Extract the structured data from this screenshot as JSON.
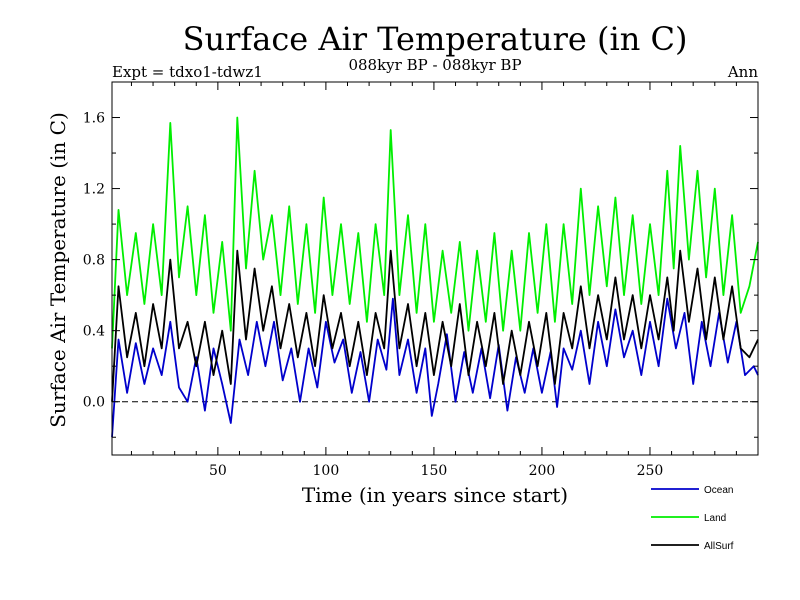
{
  "chart_data": {
    "type": "line",
    "title": "Surface Air Temperature (in C)",
    "subtitle": "088kyr BP - 088kyr BP",
    "expt_label": "Expt = tdxo1-tdwz1",
    "period_label": "Ann",
    "xlabel": "Time (in years since start)",
    "ylabel": "Surface Air Temperature (in C)",
    "xlim": [
      1,
      300
    ],
    "ylim": [
      -0.3,
      1.8
    ],
    "xticks": [
      50,
      100,
      150,
      200,
      250
    ],
    "yticks": [
      0.0,
      0.4,
      0.8,
      1.2,
      1.6
    ],
    "ytick_labels": [
      "0.0",
      "0.4",
      "0.8",
      "1.2",
      "1.6"
    ],
    "zero_line": "dashed",
    "legend_position": "bottom-right outside",
    "series": [
      {
        "name": "Ocean",
        "color": "#0000cc",
        "values": [
          {
            "x": 1,
            "y": -0.2
          },
          {
            "x": 4,
            "y": 0.35
          },
          {
            "x": 8,
            "y": 0.05
          },
          {
            "x": 12,
            "y": 0.33
          },
          {
            "x": 16,
            "y": 0.1
          },
          {
            "x": 20,
            "y": 0.3
          },
          {
            "x": 24,
            "y": 0.15
          },
          {
            "x": 28,
            "y": 0.45
          },
          {
            "x": 32,
            "y": 0.08
          },
          {
            "x": 36,
            "y": 0.0
          },
          {
            "x": 40,
            "y": 0.25
          },
          {
            "x": 44,
            "y": -0.05
          },
          {
            "x": 48,
            "y": 0.3
          },
          {
            "x": 52,
            "y": 0.1
          },
          {
            "x": 56,
            "y": -0.12
          },
          {
            "x": 60,
            "y": 0.35
          },
          {
            "x": 64,
            "y": 0.15
          },
          {
            "x": 68,
            "y": 0.45
          },
          {
            "x": 72,
            "y": 0.2
          },
          {
            "x": 76,
            "y": 0.45
          },
          {
            "x": 80,
            "y": 0.12
          },
          {
            "x": 84,
            "y": 0.3
          },
          {
            "x": 88,
            "y": 0.0
          },
          {
            "x": 92,
            "y": 0.3
          },
          {
            "x": 96,
            "y": 0.08
          },
          {
            "x": 100,
            "y": 0.45
          },
          {
            "x": 104,
            "y": 0.22
          },
          {
            "x": 108,
            "y": 0.35
          },
          {
            "x": 112,
            "y": 0.05
          },
          {
            "x": 116,
            "y": 0.28
          },
          {
            "x": 120,
            "y": 0.0
          },
          {
            "x": 124,
            "y": 0.35
          },
          {
            "x": 128,
            "y": 0.18
          },
          {
            "x": 131,
            "y": 0.58
          },
          {
            "x": 134,
            "y": 0.15
          },
          {
            "x": 138,
            "y": 0.35
          },
          {
            "x": 142,
            "y": 0.05
          },
          {
            "x": 146,
            "y": 0.3
          },
          {
            "x": 149,
            "y": -0.08
          },
          {
            "x": 152,
            "y": 0.1
          },
          {
            "x": 156,
            "y": 0.38
          },
          {
            "x": 160,
            "y": 0.0
          },
          {
            "x": 164,
            "y": 0.28
          },
          {
            "x": 168,
            "y": 0.05
          },
          {
            "x": 172,
            "y": 0.3
          },
          {
            "x": 176,
            "y": 0.02
          },
          {
            "x": 180,
            "y": 0.32
          },
          {
            "x": 184,
            "y": -0.05
          },
          {
            "x": 188,
            "y": 0.25
          },
          {
            "x": 192,
            "y": 0.05
          },
          {
            "x": 196,
            "y": 0.3
          },
          {
            "x": 200,
            "y": 0.05
          },
          {
            "x": 204,
            "y": 0.28
          },
          {
            "x": 207,
            "y": -0.03
          },
          {
            "x": 210,
            "y": 0.3
          },
          {
            "x": 214,
            "y": 0.18
          },
          {
            "x": 218,
            "y": 0.4
          },
          {
            "x": 222,
            "y": 0.1
          },
          {
            "x": 226,
            "y": 0.45
          },
          {
            "x": 230,
            "y": 0.2
          },
          {
            "x": 234,
            "y": 0.52
          },
          {
            "x": 238,
            "y": 0.25
          },
          {
            "x": 242,
            "y": 0.4
          },
          {
            "x": 246,
            "y": 0.15
          },
          {
            "x": 250,
            "y": 0.45
          },
          {
            "x": 254,
            "y": 0.2
          },
          {
            "x": 258,
            "y": 0.58
          },
          {
            "x": 262,
            "y": 0.3
          },
          {
            "x": 266,
            "y": 0.5
          },
          {
            "x": 270,
            "y": 0.1
          },
          {
            "x": 274,
            "y": 0.45
          },
          {
            "x": 278,
            "y": 0.2
          },
          {
            "x": 282,
            "y": 0.5
          },
          {
            "x": 286,
            "y": 0.22
          },
          {
            "x": 290,
            "y": 0.45
          },
          {
            "x": 294,
            "y": 0.15
          },
          {
            "x": 298,
            "y": 0.2
          },
          {
            "x": 300,
            "y": 0.15
          }
        ]
      },
      {
        "name": "Land",
        "color": "#00ee00",
        "values": [
          {
            "x": 1,
            "y": 0.3
          },
          {
            "x": 4,
            "y": 1.08
          },
          {
            "x": 8,
            "y": 0.6
          },
          {
            "x": 12,
            "y": 0.95
          },
          {
            "x": 16,
            "y": 0.55
          },
          {
            "x": 20,
            "y": 1.0
          },
          {
            "x": 24,
            "y": 0.6
          },
          {
            "x": 28,
            "y": 1.57
          },
          {
            "x": 32,
            "y": 0.7
          },
          {
            "x": 36,
            "y": 1.1
          },
          {
            "x": 40,
            "y": 0.6
          },
          {
            "x": 44,
            "y": 1.05
          },
          {
            "x": 48,
            "y": 0.5
          },
          {
            "x": 52,
            "y": 0.9
          },
          {
            "x": 56,
            "y": 0.4
          },
          {
            "x": 59,
            "y": 1.6
          },
          {
            "x": 63,
            "y": 0.75
          },
          {
            "x": 67,
            "y": 1.3
          },
          {
            "x": 71,
            "y": 0.8
          },
          {
            "x": 75,
            "y": 1.05
          },
          {
            "x": 79,
            "y": 0.6
          },
          {
            "x": 83,
            "y": 1.1
          },
          {
            "x": 87,
            "y": 0.55
          },
          {
            "x": 91,
            "y": 1.0
          },
          {
            "x": 95,
            "y": 0.5
          },
          {
            "x": 99,
            "y": 1.15
          },
          {
            "x": 103,
            "y": 0.6
          },
          {
            "x": 107,
            "y": 1.0
          },
          {
            "x": 111,
            "y": 0.55
          },
          {
            "x": 115,
            "y": 0.95
          },
          {
            "x": 119,
            "y": 0.45
          },
          {
            "x": 123,
            "y": 1.0
          },
          {
            "x": 127,
            "y": 0.6
          },
          {
            "x": 130,
            "y": 1.53
          },
          {
            "x": 134,
            "y": 0.6
          },
          {
            "x": 138,
            "y": 1.05
          },
          {
            "x": 142,
            "y": 0.5
          },
          {
            "x": 146,
            "y": 1.0
          },
          {
            "x": 150,
            "y": 0.45
          },
          {
            "x": 154,
            "y": 0.85
          },
          {
            "x": 158,
            "y": 0.5
          },
          {
            "x": 162,
            "y": 0.9
          },
          {
            "x": 166,
            "y": 0.4
          },
          {
            "x": 170,
            "y": 0.85
          },
          {
            "x": 174,
            "y": 0.45
          },
          {
            "x": 178,
            "y": 0.95
          },
          {
            "x": 182,
            "y": 0.4
          },
          {
            "x": 186,
            "y": 0.85
          },
          {
            "x": 190,
            "y": 0.4
          },
          {
            "x": 194,
            "y": 0.95
          },
          {
            "x": 198,
            "y": 0.5
          },
          {
            "x": 202,
            "y": 1.0
          },
          {
            "x": 206,
            "y": 0.45
          },
          {
            "x": 210,
            "y": 1.0
          },
          {
            "x": 214,
            "y": 0.55
          },
          {
            "x": 218,
            "y": 1.2
          },
          {
            "x": 222,
            "y": 0.6
          },
          {
            "x": 226,
            "y": 1.1
          },
          {
            "x": 230,
            "y": 0.65
          },
          {
            "x": 234,
            "y": 1.15
          },
          {
            "x": 238,
            "y": 0.6
          },
          {
            "x": 242,
            "y": 1.05
          },
          {
            "x": 246,
            "y": 0.55
          },
          {
            "x": 250,
            "y": 1.0
          },
          {
            "x": 254,
            "y": 0.6
          },
          {
            "x": 258,
            "y": 1.3
          },
          {
            "x": 261,
            "y": 0.75
          },
          {
            "x": 264,
            "y": 1.44
          },
          {
            "x": 268,
            "y": 0.8
          },
          {
            "x": 272,
            "y": 1.3
          },
          {
            "x": 276,
            "y": 0.7
          },
          {
            "x": 280,
            "y": 1.2
          },
          {
            "x": 284,
            "y": 0.6
          },
          {
            "x": 288,
            "y": 1.05
          },
          {
            "x": 292,
            "y": 0.5
          },
          {
            "x": 296,
            "y": 0.65
          },
          {
            "x": 300,
            "y": 0.9
          }
        ]
      },
      {
        "name": "AllSurf",
        "color": "#000000",
        "values": [
          {
            "x": 1,
            "y": 0.0
          },
          {
            "x": 4,
            "y": 0.65
          },
          {
            "x": 8,
            "y": 0.25
          },
          {
            "x": 12,
            "y": 0.5
          },
          {
            "x": 16,
            "y": 0.2
          },
          {
            "x": 20,
            "y": 0.55
          },
          {
            "x": 24,
            "y": 0.3
          },
          {
            "x": 28,
            "y": 0.8
          },
          {
            "x": 32,
            "y": 0.3
          },
          {
            "x": 36,
            "y": 0.45
          },
          {
            "x": 40,
            "y": 0.2
          },
          {
            "x": 44,
            "y": 0.45
          },
          {
            "x": 48,
            "y": 0.15
          },
          {
            "x": 52,
            "y": 0.4
          },
          {
            "x": 56,
            "y": 0.1
          },
          {
            "x": 59,
            "y": 0.85
          },
          {
            "x": 63,
            "y": 0.35
          },
          {
            "x": 67,
            "y": 0.75
          },
          {
            "x": 71,
            "y": 0.4
          },
          {
            "x": 75,
            "y": 0.65
          },
          {
            "x": 79,
            "y": 0.3
          },
          {
            "x": 83,
            "y": 0.55
          },
          {
            "x": 87,
            "y": 0.25
          },
          {
            "x": 91,
            "y": 0.5
          },
          {
            "x": 95,
            "y": 0.2
          },
          {
            "x": 99,
            "y": 0.6
          },
          {
            "x": 103,
            "y": 0.3
          },
          {
            "x": 107,
            "y": 0.5
          },
          {
            "x": 111,
            "y": 0.2
          },
          {
            "x": 115,
            "y": 0.45
          },
          {
            "x": 119,
            "y": 0.15
          },
          {
            "x": 123,
            "y": 0.5
          },
          {
            "x": 127,
            "y": 0.3
          },
          {
            "x": 130,
            "y": 0.85
          },
          {
            "x": 134,
            "y": 0.3
          },
          {
            "x": 138,
            "y": 0.55
          },
          {
            "x": 142,
            "y": 0.2
          },
          {
            "x": 146,
            "y": 0.5
          },
          {
            "x": 150,
            "y": 0.15
          },
          {
            "x": 154,
            "y": 0.45
          },
          {
            "x": 158,
            "y": 0.2
          },
          {
            "x": 162,
            "y": 0.55
          },
          {
            "x": 166,
            "y": 0.15
          },
          {
            "x": 170,
            "y": 0.45
          },
          {
            "x": 174,
            "y": 0.2
          },
          {
            "x": 178,
            "y": 0.5
          },
          {
            "x": 182,
            "y": 0.1
          },
          {
            "x": 186,
            "y": 0.4
          },
          {
            "x": 190,
            "y": 0.15
          },
          {
            "x": 194,
            "y": 0.45
          },
          {
            "x": 198,
            "y": 0.2
          },
          {
            "x": 202,
            "y": 0.5
          },
          {
            "x": 206,
            "y": 0.1
          },
          {
            "x": 210,
            "y": 0.5
          },
          {
            "x": 214,
            "y": 0.3
          },
          {
            "x": 218,
            "y": 0.65
          },
          {
            "x": 222,
            "y": 0.3
          },
          {
            "x": 226,
            "y": 0.6
          },
          {
            "x": 230,
            "y": 0.35
          },
          {
            "x": 234,
            "y": 0.7
          },
          {
            "x": 238,
            "y": 0.35
          },
          {
            "x": 242,
            "y": 0.6
          },
          {
            "x": 246,
            "y": 0.3
          },
          {
            "x": 250,
            "y": 0.6
          },
          {
            "x": 254,
            "y": 0.35
          },
          {
            "x": 258,
            "y": 0.7
          },
          {
            "x": 261,
            "y": 0.4
          },
          {
            "x": 264,
            "y": 0.85
          },
          {
            "x": 268,
            "y": 0.45
          },
          {
            "x": 272,
            "y": 0.75
          },
          {
            "x": 276,
            "y": 0.35
          },
          {
            "x": 280,
            "y": 0.7
          },
          {
            "x": 284,
            "y": 0.35
          },
          {
            "x": 288,
            "y": 0.65
          },
          {
            "x": 292,
            "y": 0.3
          },
          {
            "x": 296,
            "y": 0.25
          },
          {
            "x": 300,
            "y": 0.35
          }
        ]
      }
    ]
  }
}
